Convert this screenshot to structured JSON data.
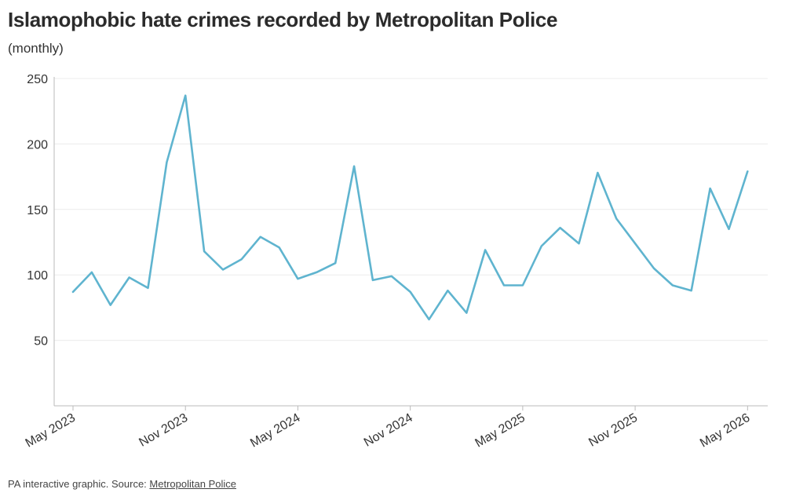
{
  "header": {
    "title": "Islamophobic hate crimes recorded by Metropolitan Police",
    "subtitle": "(monthly)"
  },
  "footer": {
    "text": "PA interactive graphic. Source: ",
    "source_link": "Metropolitan Police"
  },
  "colors": {
    "line": "#5fb4cf",
    "grid": "#ececec",
    "axis": "#bbbbbb"
  },
  "chart_data": {
    "type": "line",
    "title": "Islamophobic hate crimes recorded by Metropolitan Police",
    "subtitle": "(monthly)",
    "xlabel": "",
    "ylabel": "",
    "ylim": [
      0,
      250
    ],
    "yticks": [
      50,
      100,
      150,
      200,
      250
    ],
    "grid": true,
    "x_tick_labels": [
      "May 2023",
      "Nov 2023",
      "May 2024",
      "Nov 2024",
      "May 2025",
      "Nov 2025",
      "May 2026"
    ],
    "x": [
      "2023-05",
      "2023-06",
      "2023-07",
      "2023-08",
      "2023-09",
      "2023-10",
      "2023-11",
      "2023-12",
      "2024-01",
      "2024-02",
      "2024-03",
      "2024-04",
      "2024-05",
      "2024-06",
      "2024-07",
      "2024-08",
      "2024-09",
      "2024-10",
      "2024-11",
      "2024-12",
      "2025-01",
      "2025-02",
      "2025-03",
      "2025-04",
      "2025-05",
      "2025-06",
      "2025-07",
      "2025-08",
      "2025-09",
      "2025-10",
      "2025-11",
      "2025-12",
      "2026-01",
      "2026-02",
      "2026-03",
      "2026-04",
      "2026-05"
    ],
    "series": [
      {
        "values": [
          87,
          102,
          77,
          98,
          90,
          186,
          237,
          118,
          104,
          112,
          129,
          121,
          97,
          102,
          109,
          183,
          96,
          99,
          87,
          66,
          88,
          71,
          119,
          92,
          92,
          122,
          136,
          124,
          178,
          143,
          124,
          105,
          92,
          88,
          166,
          135,
          179
        ]
      }
    ]
  }
}
